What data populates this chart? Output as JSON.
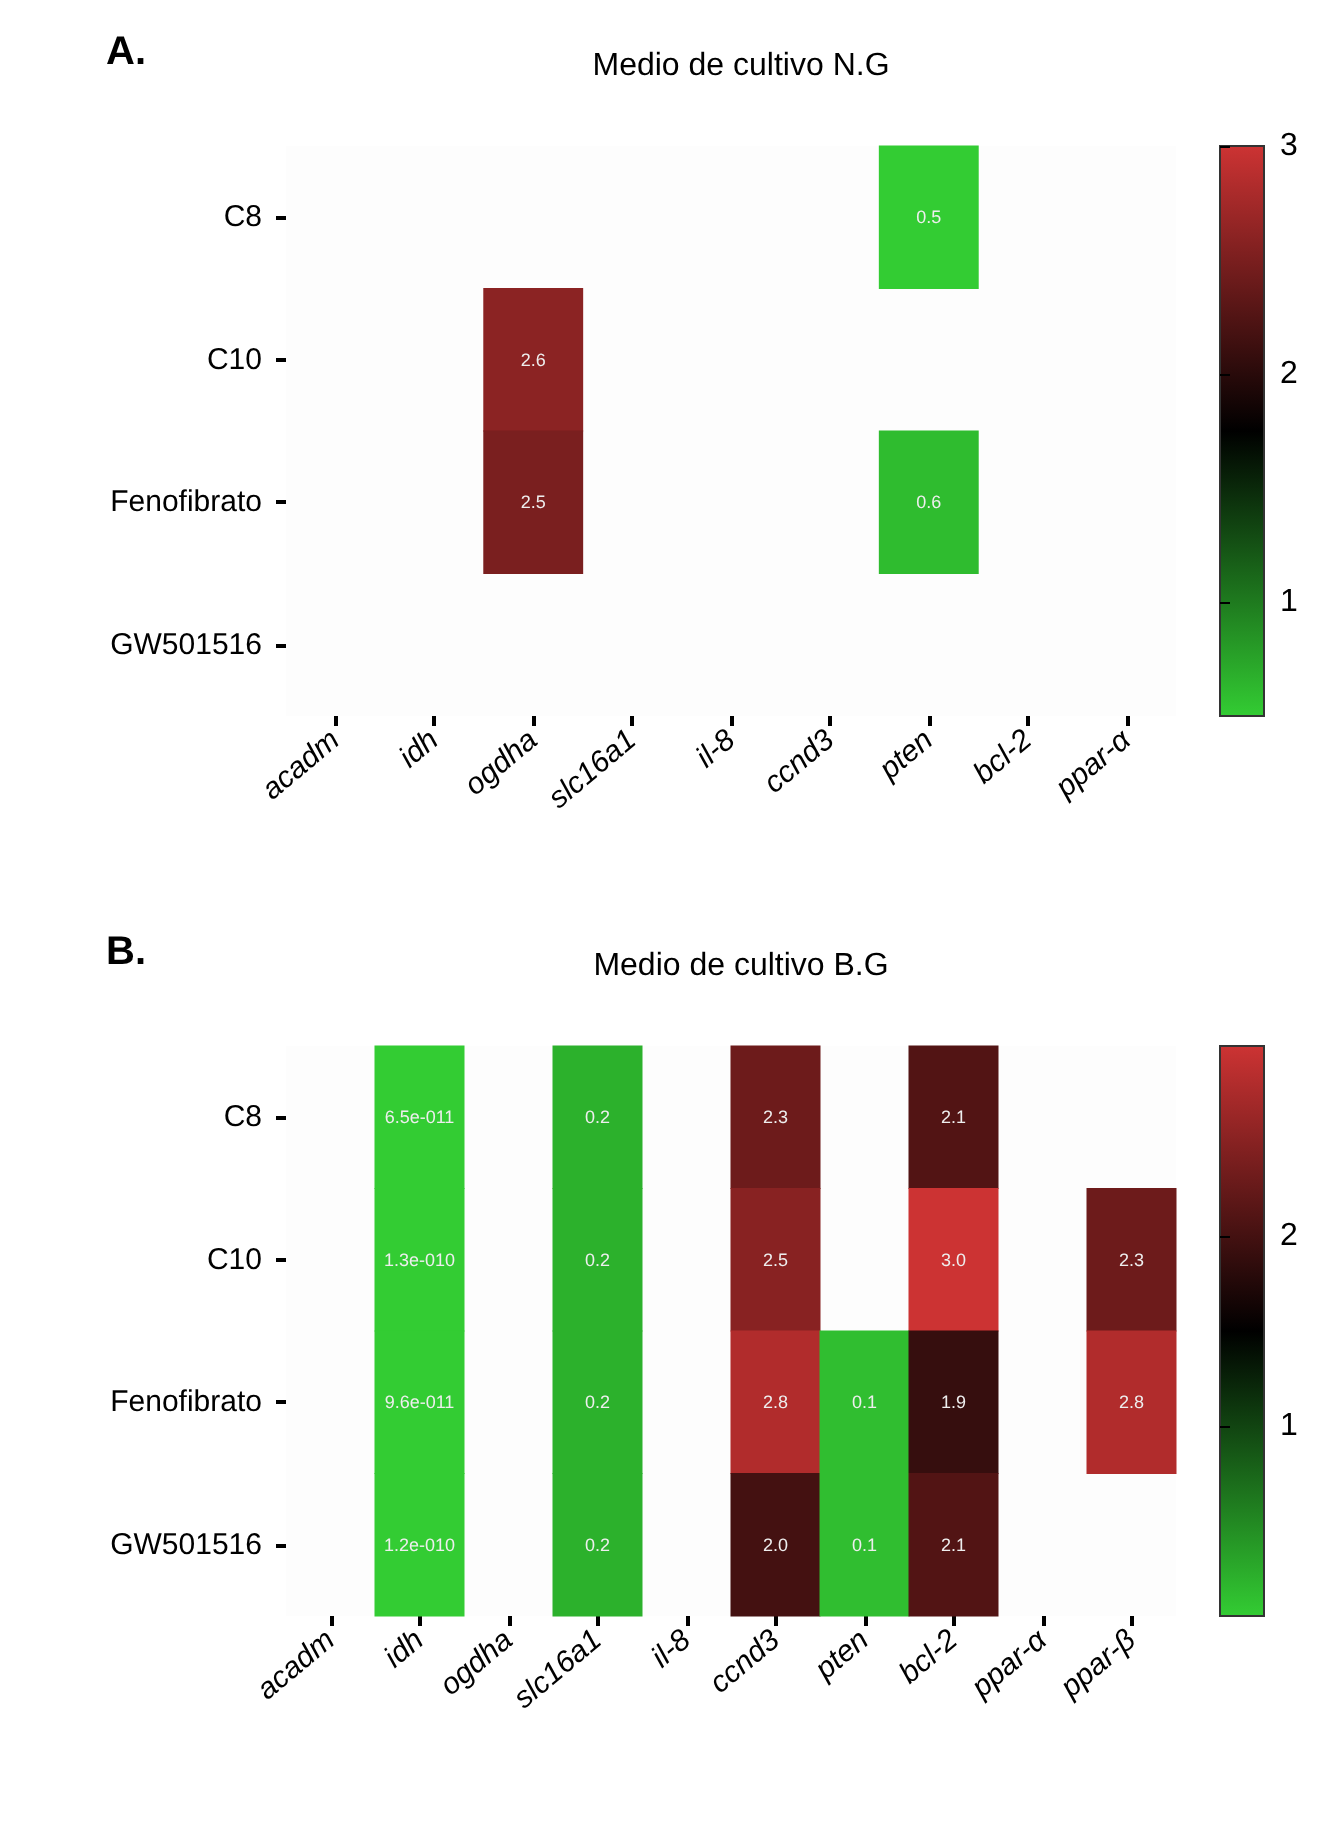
{
  "chart_data": [
    {
      "type": "heatmap",
      "title": "Medio de cultivo N.G",
      "annotations": [
        "A."
      ],
      "categories": [
        "acadm",
        "idh",
        "ogdha",
        "slc16a1",
        "il-8",
        "ccnd3",
        "pten",
        "bcl-2",
        "ppar-α"
      ],
      "y_categories": [
        "C8",
        "C10",
        "Fenofibrato",
        "GW501516"
      ],
      "cells": [
        [
          null,
          null,
          null,
          null,
          null,
          null,
          0.5,
          null,
          null
        ],
        [
          null,
          null,
          2.6,
          null,
          null,
          null,
          null,
          null,
          null
        ],
        [
          null,
          null,
          2.5,
          null,
          null,
          null,
          0.6,
          null,
          null
        ],
        [
          null,
          null,
          null,
          null,
          null,
          null,
          null,
          null,
          null
        ]
      ],
      "cell_labels": [
        [
          null,
          null,
          null,
          null,
          null,
          null,
          "0.5",
          null,
          null
        ],
        [
          null,
          null,
          "2.6",
          null,
          null,
          null,
          null,
          null,
          null
        ],
        [
          null,
          null,
          "2.5",
          null,
          null,
          null,
          "0.6",
          null,
          null
        ],
        [
          null,
          null,
          null,
          null,
          null,
          null,
          null,
          null,
          null
        ]
      ],
      "clim": [
        0.5,
        3
      ],
      "cticks": [
        1,
        2,
        3
      ]
    },
    {
      "type": "heatmap",
      "title": "Medio de cultivo B.G",
      "annotations": [
        "B."
      ],
      "categories": [
        "acadm",
        "idh",
        "ogdha",
        "slc16a1",
        "il-8",
        "ccnd3",
        "pten",
        "bcl-2",
        "ppar-α",
        "ppar-β"
      ],
      "y_categories": [
        "C8",
        "C10",
        "Fenofibrato",
        "GW501516"
      ],
      "cells": [
        [
          null,
          6.5e-11,
          null,
          0.2,
          null,
          2.3,
          null,
          2.1,
          null,
          null
        ],
        [
          null,
          1.3e-10,
          null,
          0.2,
          null,
          2.5,
          null,
          3.0,
          null,
          2.3
        ],
        [
          null,
          9.6e-11,
          null,
          0.2,
          null,
          2.8,
          0.1,
          1.9,
          null,
          2.8
        ],
        [
          null,
          1.2e-10,
          null,
          0.2,
          null,
          2.0,
          0.1,
          2.1,
          null,
          null
        ]
      ],
      "cell_labels": [
        [
          null,
          "6.5e-011",
          null,
          "0.2",
          null,
          "2.3",
          null,
          "2.1",
          null,
          null
        ],
        [
          null,
          "1.3e-010",
          null,
          "0.2",
          null,
          "2.5",
          null,
          "3.0",
          null,
          "2.3"
        ],
        [
          null,
          "9.6e-011",
          null,
          "0.2",
          null,
          "2.8",
          "0.1",
          "1.9",
          null,
          "2.8"
        ],
        [
          null,
          "1.2e-010",
          null,
          "0.2",
          null,
          "2.0",
          "0.1",
          "2.1",
          null,
          null
        ]
      ],
      "clim": [
        0,
        3
      ],
      "cticks": [
        1,
        2
      ]
    }
  ]
}
